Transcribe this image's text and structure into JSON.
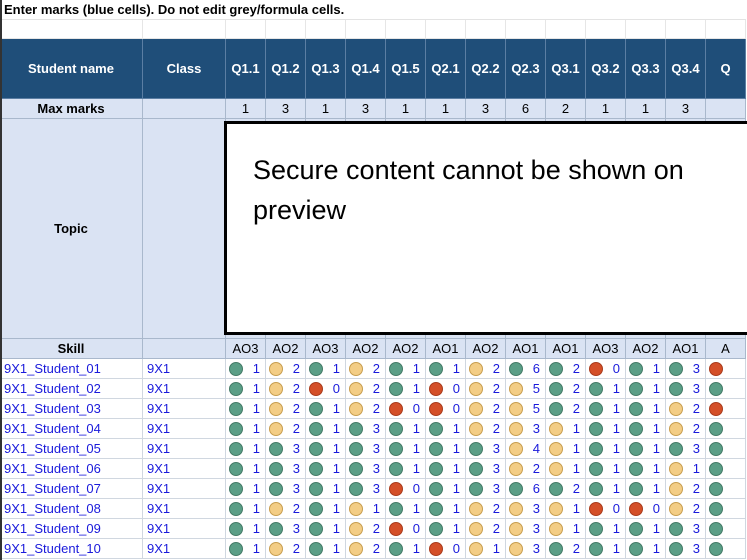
{
  "instruction": "Enter marks (blue cells). Do not edit grey/formula cells.",
  "headers": {
    "student_name": "Student name",
    "class": "Class",
    "questions": [
      "Q1.1",
      "Q1.2",
      "Q1.3",
      "Q1.4",
      "Q1.5",
      "Q2.1",
      "Q2.2",
      "Q2.3",
      "Q3.1",
      "Q3.2",
      "Q3.3",
      "Q3.4",
      "Q"
    ]
  },
  "max_marks": {
    "label": "Max marks",
    "values": [
      "1",
      "3",
      "1",
      "3",
      "1",
      "1",
      "3",
      "6",
      "2",
      "1",
      "1",
      "3",
      ""
    ]
  },
  "topic": {
    "label": "Topic"
  },
  "preview_message": "Secure content cannot be shown on preview",
  "skill": {
    "label": "Skill",
    "values": [
      "AO3",
      "AO2",
      "AO3",
      "AO2",
      "AO2",
      "AO1",
      "AO2",
      "AO1",
      "AO1",
      "AO3",
      "AO2",
      "AO1",
      "A"
    ]
  },
  "status_colors": {
    "g": "#5a9e86",
    "a": "#f3cd85",
    "r": "#d44f28"
  },
  "students": [
    {
      "name": "9X1_Student_01",
      "class": "9X1",
      "marks": [
        "1",
        "2",
        "1",
        "2",
        "1",
        "1",
        "2",
        "6",
        "2",
        "0",
        "1",
        "3",
        ""
      ],
      "status": [
        "g",
        "a",
        "g",
        "a",
        "g",
        "g",
        "a",
        "g",
        "g",
        "r",
        "g",
        "g",
        "r"
      ]
    },
    {
      "name": "9X1_Student_02",
      "class": "9X1",
      "marks": [
        "1",
        "2",
        "0",
        "2",
        "1",
        "0",
        "2",
        "5",
        "2",
        "1",
        "1",
        "3",
        ""
      ],
      "status": [
        "g",
        "a",
        "r",
        "a",
        "g",
        "r",
        "a",
        "a",
        "g",
        "g",
        "g",
        "g",
        "g"
      ]
    },
    {
      "name": "9X1_Student_03",
      "class": "9X1",
      "marks": [
        "1",
        "2",
        "1",
        "2",
        "0",
        "0",
        "2",
        "5",
        "2",
        "1",
        "1",
        "2",
        ""
      ],
      "status": [
        "g",
        "a",
        "g",
        "a",
        "r",
        "r",
        "a",
        "a",
        "g",
        "g",
        "g",
        "a",
        "r"
      ]
    },
    {
      "name": "9X1_Student_04",
      "class": "9X1",
      "marks": [
        "1",
        "2",
        "1",
        "3",
        "1",
        "1",
        "2",
        "3",
        "1",
        "1",
        "1",
        "2",
        ""
      ],
      "status": [
        "g",
        "a",
        "g",
        "g",
        "g",
        "g",
        "a",
        "a",
        "a",
        "g",
        "g",
        "a",
        "g"
      ]
    },
    {
      "name": "9X1_Student_05",
      "class": "9X1",
      "marks": [
        "1",
        "3",
        "1",
        "3",
        "1",
        "1",
        "3",
        "4",
        "1",
        "1",
        "1",
        "3",
        ""
      ],
      "status": [
        "g",
        "g",
        "g",
        "g",
        "g",
        "g",
        "g",
        "a",
        "a",
        "g",
        "g",
        "g",
        "g"
      ]
    },
    {
      "name": "9X1_Student_06",
      "class": "9X1",
      "marks": [
        "1",
        "3",
        "1",
        "3",
        "1",
        "1",
        "3",
        "2",
        "1",
        "1",
        "1",
        "1",
        ""
      ],
      "status": [
        "g",
        "g",
        "g",
        "g",
        "g",
        "g",
        "g",
        "a",
        "a",
        "g",
        "g",
        "a",
        "g"
      ]
    },
    {
      "name": "9X1_Student_07",
      "class": "9X1",
      "marks": [
        "1",
        "3",
        "1",
        "3",
        "0",
        "1",
        "3",
        "6",
        "2",
        "1",
        "1",
        "2",
        ""
      ],
      "status": [
        "g",
        "g",
        "g",
        "g",
        "r",
        "g",
        "g",
        "g",
        "g",
        "g",
        "g",
        "a",
        "g"
      ]
    },
    {
      "name": "9X1_Student_08",
      "class": "9X1",
      "marks": [
        "1",
        "2",
        "1",
        "1",
        "1",
        "1",
        "2",
        "3",
        "1",
        "0",
        "0",
        "2",
        ""
      ],
      "status": [
        "g",
        "a",
        "g",
        "a",
        "g",
        "g",
        "a",
        "a",
        "a",
        "r",
        "r",
        "a",
        "g"
      ]
    },
    {
      "name": "9X1_Student_09",
      "class": "9X1",
      "marks": [
        "1",
        "3",
        "1",
        "2",
        "0",
        "1",
        "2",
        "3",
        "1",
        "1",
        "1",
        "3",
        ""
      ],
      "status": [
        "g",
        "g",
        "g",
        "a",
        "r",
        "g",
        "a",
        "a",
        "a",
        "g",
        "g",
        "g",
        "g"
      ]
    },
    {
      "name": "9X1_Student_10",
      "class": "9X1",
      "marks": [
        "1",
        "2",
        "1",
        "2",
        "1",
        "0",
        "1",
        "3",
        "2",
        "1",
        "1",
        "3",
        ""
      ],
      "status": [
        "g",
        "a",
        "g",
        "a",
        "g",
        "r",
        "a",
        "a",
        "g",
        "g",
        "g",
        "g",
        "g"
      ]
    }
  ]
}
